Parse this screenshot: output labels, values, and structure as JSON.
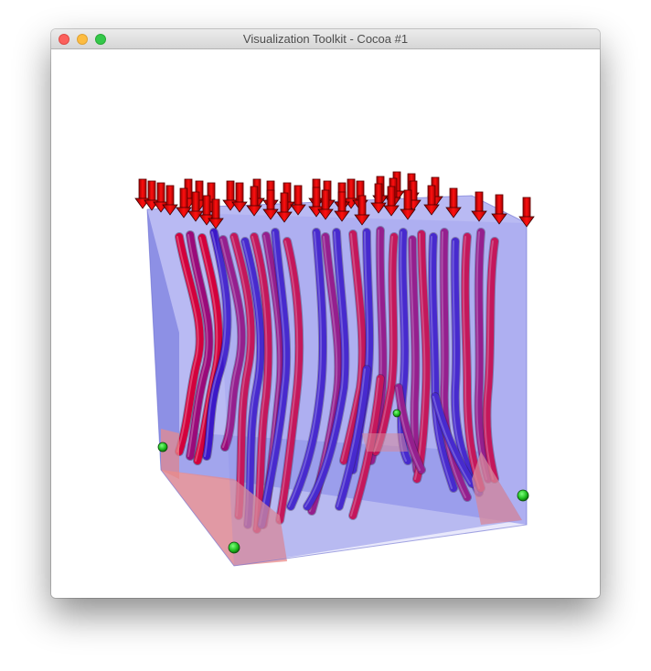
{
  "window": {
    "title": "Visualization Toolkit - Cocoa #1",
    "controls": [
      "close",
      "minimize",
      "zoom"
    ]
  },
  "scene": {
    "background": "#ffffff",
    "box_color": "#7f82ea",
    "corner_block_color": "#e98a8a",
    "arrow_color": "#ff0000",
    "streamline_colors": [
      "#d3003c",
      "#9a0a7a",
      "#3b18c8"
    ],
    "seed_point_color": "#1fbf1f",
    "icons": [
      "vector-arrow-glyph",
      "streamtube",
      "seed-point-sphere"
    ]
  }
}
